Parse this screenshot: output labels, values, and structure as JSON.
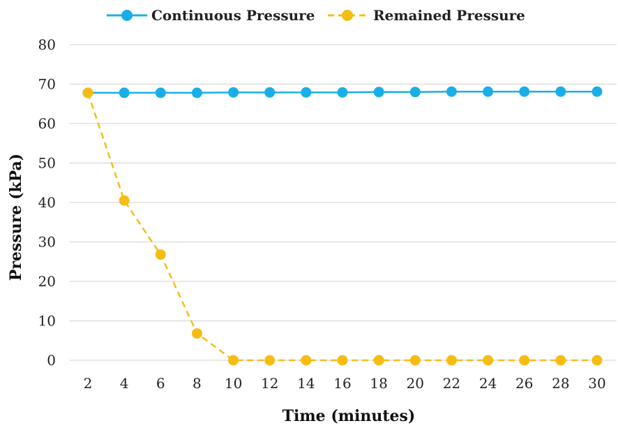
{
  "chart_data": {
    "type": "line",
    "title": "",
    "xlabel": "Time (minutes)",
    "ylabel": "Pressure (kPa)",
    "x": [
      2,
      4,
      6,
      8,
      10,
      12,
      14,
      16,
      18,
      20,
      22,
      24,
      26,
      28,
      30
    ],
    "ylim": [
      0,
      80
    ],
    "yticks": [
      0,
      10,
      20,
      30,
      40,
      50,
      60,
      70,
      80
    ],
    "grid": "horizontal",
    "legend_position": "top",
    "series": [
      {
        "name": "Continuous Pressure",
        "color": "#1aaee8",
        "line_style": "solid",
        "values": [
          67.8,
          67.8,
          67.8,
          67.8,
          67.9,
          67.9,
          67.9,
          67.9,
          68.0,
          68.0,
          68.1,
          68.1,
          68.1,
          68.1,
          68.1
        ]
      },
      {
        "name": "Remained Pressure",
        "color": "#f5bd14",
        "line_style": "dashed",
        "values": [
          67.8,
          40.5,
          26.8,
          6.8,
          0,
          0,
          0,
          0,
          0,
          0,
          0,
          0,
          0,
          0,
          0
        ]
      }
    ]
  }
}
